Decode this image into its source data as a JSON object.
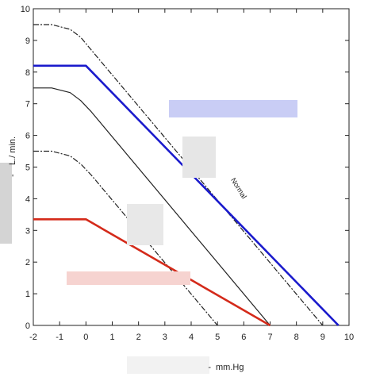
{
  "chart_data": {
    "type": "line",
    "xlabel": "mm.Hg",
    "ylabel": "L./ min.",
    "xlim": [
      -2,
      10
    ],
    "ylim": [
      0,
      10
    ],
    "x_ticks": [
      -2,
      -1,
      0,
      1,
      2,
      3,
      4,
      5,
      6,
      7,
      8,
      9,
      10
    ],
    "y_ticks": [
      0,
      1,
      2,
      3,
      4,
      5,
      6,
      7,
      8,
      9,
      10
    ],
    "grid": false,
    "annotations": [
      {
        "text": "Normal",
        "x": 5.5,
        "y": 4.6
      }
    ],
    "series": [
      {
        "style": "dashed",
        "color": "#222222",
        "points": [
          [
            -2,
            9.5
          ],
          [
            -1.3,
            9.5
          ],
          [
            -0.6,
            9.35
          ],
          [
            -0.2,
            9.1
          ],
          [
            0.2,
            8.7
          ],
          [
            9,
            0
          ]
        ]
      },
      {
        "style": "solid",
        "color": "#1a1acc",
        "points": [
          [
            -2,
            8.2
          ],
          [
            0,
            8.2
          ],
          [
            9.6,
            0
          ]
        ]
      },
      {
        "style": "solid",
        "color": "#222222",
        "points": [
          [
            -2,
            7.5
          ],
          [
            -1.3,
            7.5
          ],
          [
            -0.6,
            7.35
          ],
          [
            -0.2,
            7.1
          ],
          [
            0.2,
            6.75
          ],
          [
            7,
            0
          ]
        ]
      },
      {
        "style": "dashed",
        "color": "#222222",
        "points": [
          [
            -2,
            5.5
          ],
          [
            -1.3,
            5.5
          ],
          [
            -0.6,
            5.35
          ],
          [
            -0.2,
            5.1
          ],
          [
            0.2,
            4.75
          ],
          [
            5,
            0
          ]
        ]
      },
      {
        "style": "solid",
        "color": "#d42a1a",
        "points": [
          [
            -2,
            3.35
          ],
          [
            0,
            3.35
          ],
          [
            7,
            0
          ]
        ]
      }
    ]
  }
}
